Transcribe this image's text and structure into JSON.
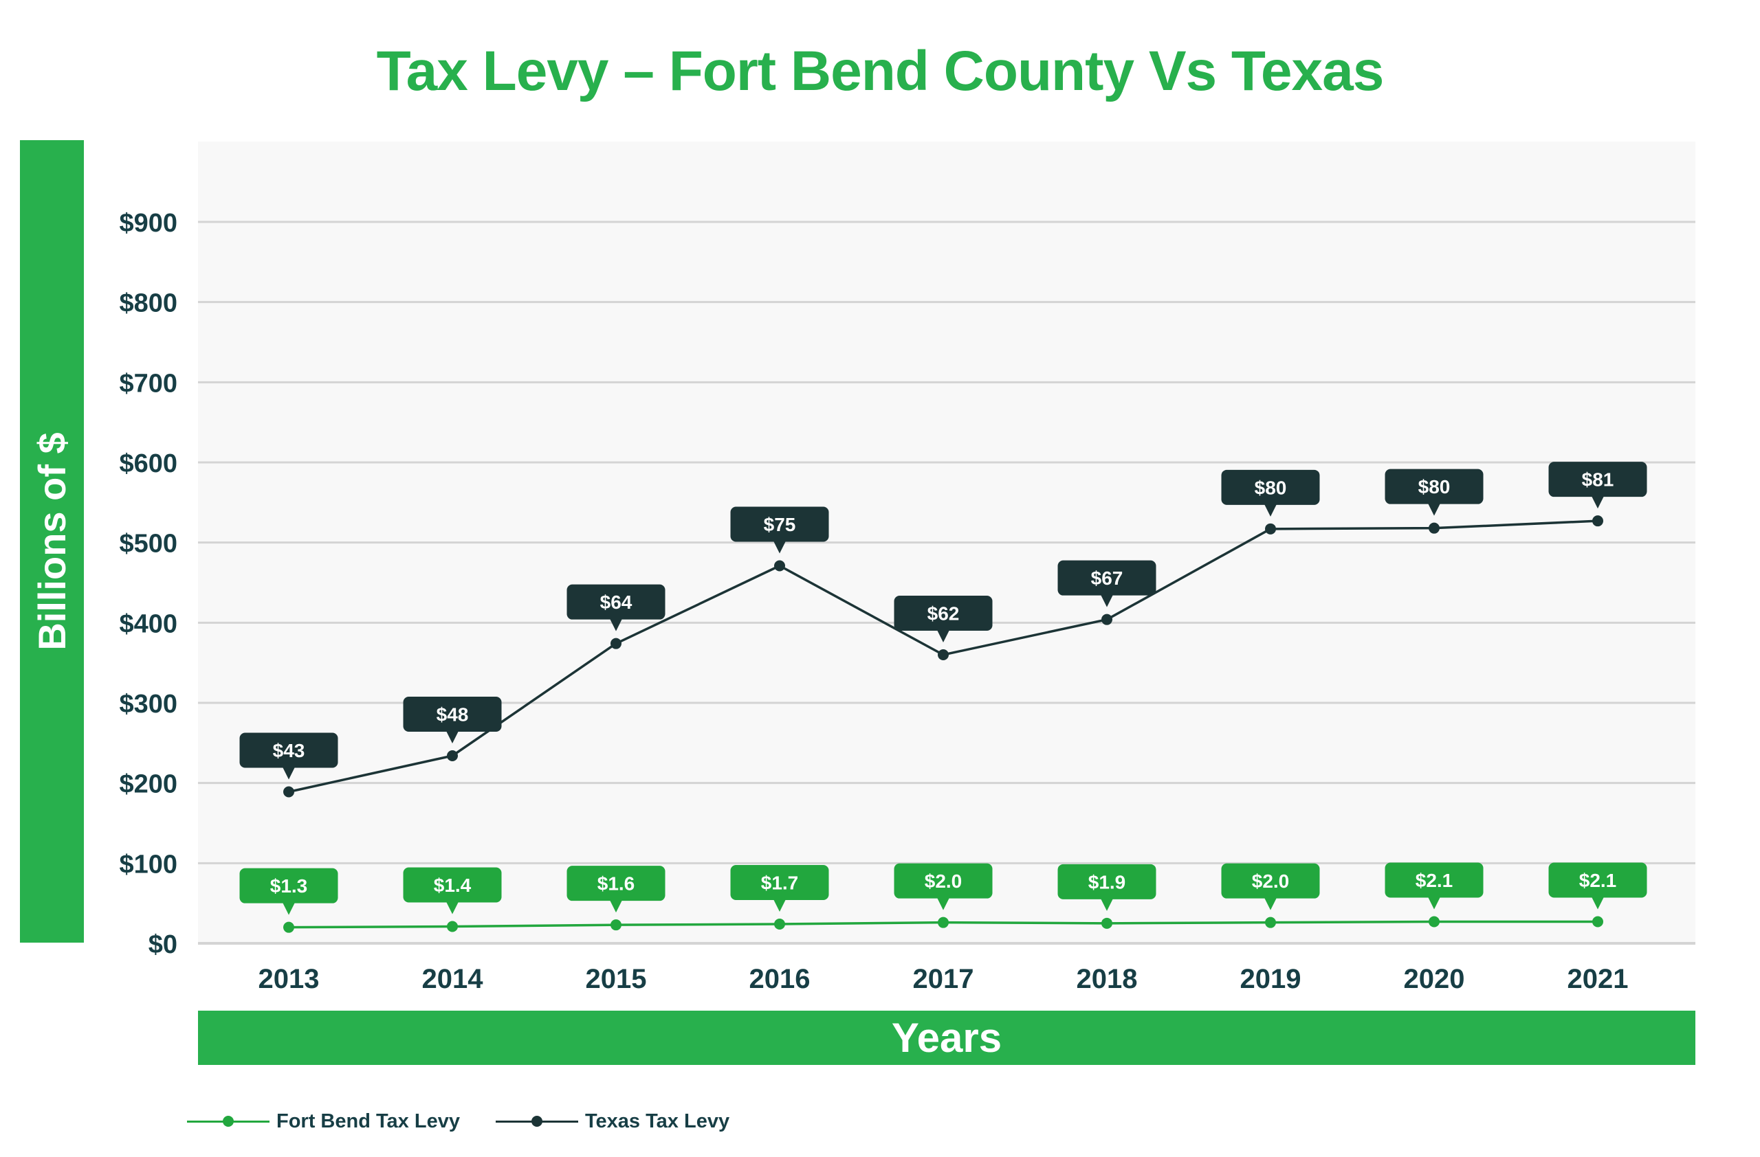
{
  "chart_data": {
    "type": "line",
    "title": "Tax Levy – Fort Bend County Vs Texas",
    "xlabel": "Years",
    "ylabel": "Billions of $",
    "categories": [
      "2013",
      "2014",
      "2015",
      "2016",
      "2017",
      "2018",
      "2019",
      "2020",
      "2021"
    ],
    "y_ticks": [
      "$0",
      "$100",
      "$200",
      "$300",
      "$400",
      "$500",
      "$600",
      "$700",
      "$800",
      "$900"
    ],
    "y_tick_values": [
      0,
      100,
      200,
      300,
      400,
      500,
      600,
      700,
      800,
      900
    ],
    "ylim": [
      0,
      1000
    ],
    "grid": true,
    "legend_position": "bottom-left",
    "series": [
      {
        "name": "Fort Bend Tax Levy",
        "color": "#22A73E",
        "plotted_values": [
          20,
          21,
          23,
          24,
          26,
          25,
          26,
          27,
          27
        ],
        "labels": [
          "$1.3",
          "$1.4",
          "$1.6",
          "$1.7",
          "$2.0",
          "$1.9",
          "$2.0",
          "$2.1",
          "$2.1"
        ],
        "label_values": [
          1.3,
          1.4,
          1.6,
          1.7,
          2.0,
          1.9,
          2.0,
          2.1,
          2.1
        ]
      },
      {
        "name": "Texas Tax Levy",
        "color": "#1C3436",
        "plotted_values": [
          189,
          234,
          374,
          471,
          360,
          404,
          517,
          518,
          527
        ],
        "labels": [
          "$43",
          "$48",
          "$64",
          "$75",
          "$62",
          "$67",
          "$80",
          "$80",
          "$81"
        ],
        "label_values": [
          43,
          48,
          64,
          75,
          62,
          67,
          80,
          80,
          81
        ]
      }
    ]
  },
  "colors": {
    "accent_green": "#28B04D",
    "callout_green": "#22A73E",
    "dark": "#1C3436",
    "axis_text": "#173E45",
    "plot_bg": "#F8F8F8",
    "gridline": "#D4D4D4"
  }
}
